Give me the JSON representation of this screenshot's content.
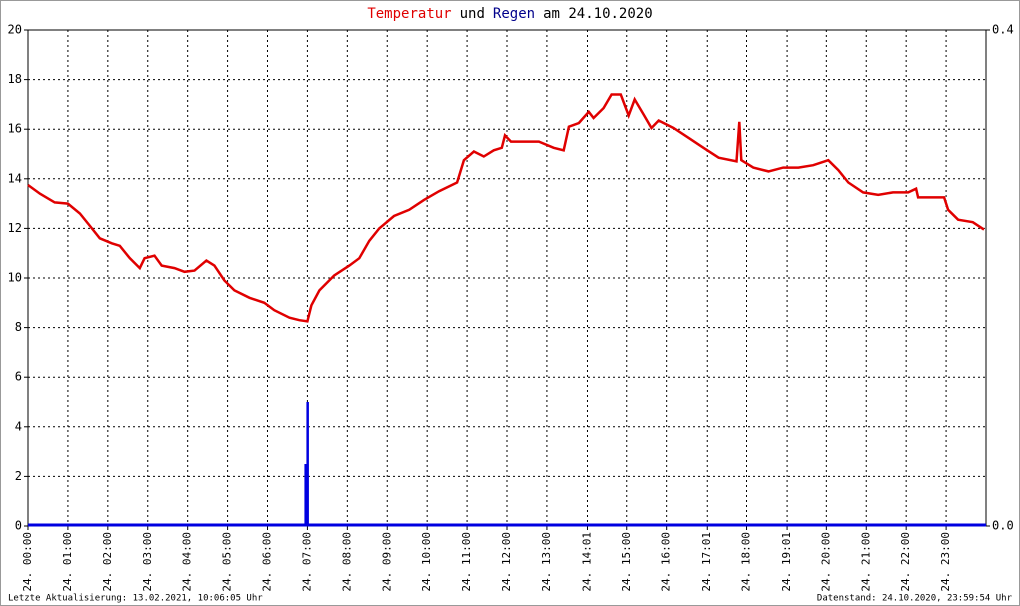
{
  "chart_data": {
    "type": "line",
    "title_parts": [
      {
        "text": "Temperatur",
        "color": "#e00000"
      },
      {
        "text": "und",
        "color": "#000000"
      },
      {
        "text": "Regen",
        "color": "#00008b"
      },
      {
        "text": "am 24.10.2020",
        "color": "#000000"
      }
    ],
    "xlim": [
      0,
      24
    ],
    "xticks": [
      {
        "value": 0,
        "label": "24. 00:00"
      },
      {
        "value": 1,
        "label": "24. 01:00"
      },
      {
        "value": 2,
        "label": "24. 02:00"
      },
      {
        "value": 3,
        "label": "24. 03:00"
      },
      {
        "value": 4,
        "label": "24. 04:00"
      },
      {
        "value": 5,
        "label": "24. 05:00"
      },
      {
        "value": 6,
        "label": "24. 06:00"
      },
      {
        "value": 7,
        "label": "24. 07:00"
      },
      {
        "value": 8,
        "label": "24. 08:00"
      },
      {
        "value": 9,
        "label": "24. 09:00"
      },
      {
        "value": 10,
        "label": "24. 10:00"
      },
      {
        "value": 11,
        "label": "24. 11:00"
      },
      {
        "value": 12,
        "label": "24. 12:00"
      },
      {
        "value": 13,
        "label": "24. 13:00"
      },
      {
        "value": 14.0167,
        "label": "24. 14:01"
      },
      {
        "value": 15,
        "label": "24. 15:00"
      },
      {
        "value": 16,
        "label": "24. 16:00"
      },
      {
        "value": 17.0167,
        "label": "24. 17:01"
      },
      {
        "value": 18,
        "label": "24. 18:00"
      },
      {
        "value": 19.0167,
        "label": "24. 19:01"
      },
      {
        "value": 20,
        "label": "24. 20:00"
      },
      {
        "value": 21,
        "label": "24. 21:00"
      },
      {
        "value": 22,
        "label": "24. 22:00"
      },
      {
        "value": 23,
        "label": "24. 23:00"
      }
    ],
    "ylim": [
      0,
      20
    ],
    "yticks": [
      0,
      2,
      4,
      6,
      8,
      10,
      12,
      14,
      16,
      18,
      20
    ],
    "y2lim": [
      0,
      0.4
    ],
    "y2ticks": [
      {
        "value": 0,
        "label": "0.0"
      },
      {
        "value": 0.4,
        "label": "0.4"
      }
    ],
    "grid": true,
    "series": [
      {
        "color": "#e00000",
        "x": [
          0,
          0.3,
          0.67,
          1.0,
          1.3,
          1.55,
          1.8,
          2.1,
          2.3,
          2.55,
          2.8,
          2.92,
          3.17,
          3.35,
          3.67,
          3.92,
          4.17,
          4.47,
          4.67,
          4.92,
          5.17,
          5.55,
          5.92,
          6.17,
          6.55,
          6.8,
          7.0,
          7.1,
          7.3,
          7.67,
          8.05,
          8.3,
          8.55,
          8.8,
          9.17,
          9.55,
          9.92,
          10.3,
          10.75,
          10.92,
          11.17,
          11.42,
          11.67,
          11.87,
          11.95,
          12.1,
          12.8,
          13.17,
          13.42,
          13.55,
          13.8,
          14.05,
          14.17,
          14.42,
          14.62,
          14.85,
          15.05,
          15.2,
          15.42,
          15.62,
          15.8,
          16.17,
          16.55,
          16.92,
          17.3,
          17.75,
          17.82,
          17.87,
          18.17,
          18.55,
          18.92,
          19.3,
          19.67,
          20.05,
          20.3,
          20.55,
          20.92,
          21.3,
          21.67,
          22.05,
          22.25,
          22.3,
          22.95,
          23.05,
          23.3,
          23.67,
          23.95
        ],
        "values": [
          13.75,
          13.4,
          13.05,
          13.0,
          12.6,
          12.1,
          11.6,
          11.4,
          11.3,
          10.8,
          10.4,
          10.8,
          10.9,
          10.5,
          10.4,
          10.25,
          10.3,
          10.7,
          10.5,
          9.9,
          9.5,
          9.2,
          9.0,
          8.7,
          8.4,
          8.3,
          8.25,
          8.9,
          9.5,
          10.1,
          10.5,
          10.8,
          11.5,
          12.0,
          12.5,
          12.75,
          13.15,
          13.5,
          13.85,
          14.75,
          15.1,
          14.9,
          15.15,
          15.25,
          15.75,
          15.5,
          15.5,
          15.25,
          15.15,
          16.1,
          16.25,
          16.7,
          16.45,
          16.85,
          17.4,
          17.4,
          16.55,
          17.2,
          16.6,
          16.05,
          16.35,
          16.05,
          15.65,
          15.25,
          14.85,
          14.7,
          16.3,
          14.75,
          14.45,
          14.3,
          14.45,
          14.45,
          14.55,
          14.75,
          14.35,
          13.85,
          13.45,
          13.35,
          13.45,
          13.45,
          13.6,
          13.25,
          13.25,
          12.75,
          12.35,
          12.25,
          11.95
        ]
      },
      {
        "color": "#0000e0",
        "axis": "y2",
        "type": "bar",
        "x": [
          6.95,
          7.0
        ],
        "values": [
          0.05,
          0.1
        ]
      }
    ],
    "footer_left": "Letzte Aktualisierung: 13.02.2021, 10:06:05 Uhr",
    "footer_right": "Datenstand: 24.10.2020, 23:59:54 Uhr"
  }
}
